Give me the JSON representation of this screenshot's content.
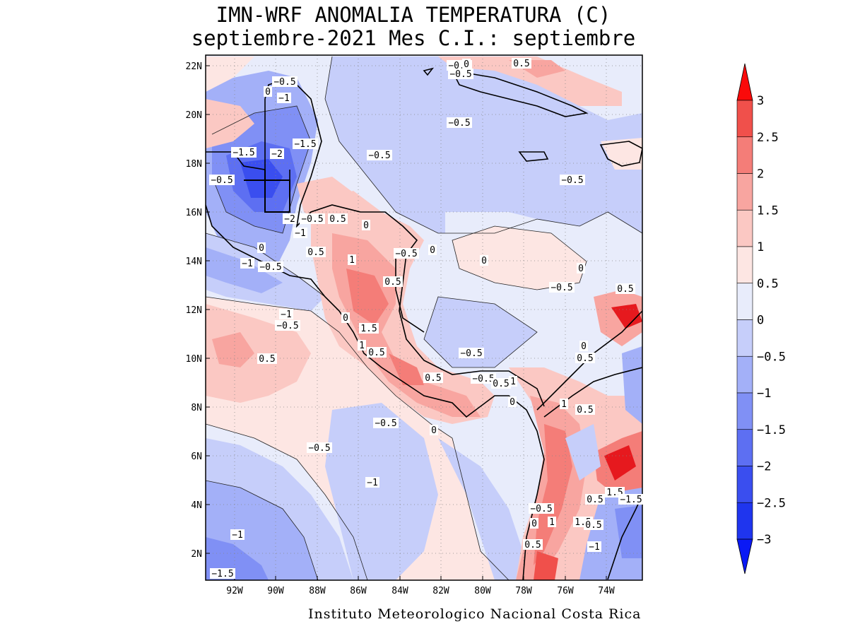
{
  "header": {
    "title": "IMN-WRF  ANOMALIA TEMPERATURA (C)",
    "subtitle": "septiembre-2021 Mes C.I.: septiembre"
  },
  "footer": {
    "credit": "Instituto Meteorologico Nacional Costa Rica"
  },
  "map": {
    "lat_labels": [
      "22N",
      "20N",
      "18N",
      "16N",
      "14N",
      "12N",
      "10N",
      "8N",
      "6N",
      "4N",
      "2N"
    ],
    "lon_labels": [
      "92W",
      "90W",
      "88W",
      "86W",
      "84W",
      "82W",
      "80W",
      "78W",
      "76W",
      "74W"
    ],
    "contour_labels": [
      {
        "text": "-0.5"
      },
      {
        "text": "0"
      },
      {
        "text": "-1"
      },
      {
        "text": "-1.5"
      },
      {
        "text": "-2"
      },
      {
        "text": "-1.5"
      },
      {
        "text": "-0.5"
      },
      {
        "text": "-0.5"
      },
      {
        "text": "0"
      },
      {
        "text": "0.5"
      },
      {
        "text": "-0.5"
      },
      {
        "text": "-0.5"
      },
      {
        "text": "-0.5"
      },
      {
        "text": "-0.5"
      },
      {
        "text": "-2"
      },
      {
        "text": "-0.5"
      },
      {
        "text": "0.5"
      },
      {
        "text": "0"
      },
      {
        "text": "-1"
      },
      {
        "text": "0"
      },
      {
        "text": "0.5"
      },
      {
        "text": "-1"
      },
      {
        "text": "-0.5"
      },
      {
        "text": "1"
      },
      {
        "text": "-0.5"
      },
      {
        "text": "0"
      },
      {
        "text": "0"
      },
      {
        "text": "0"
      },
      {
        "text": "0.5"
      },
      {
        "text": "-0.5"
      },
      {
        "text": "0.5"
      },
      {
        "text": "-1"
      },
      {
        "text": "-0.5"
      },
      {
        "text": "0"
      },
      {
        "text": "1.5"
      },
      {
        "text": "0.5"
      },
      {
        "text": "-0.5"
      },
      {
        "text": "0.5"
      },
      {
        "text": "0.5"
      },
      {
        "text": "1"
      },
      {
        "text": "-0.5"
      },
      {
        "text": "0.5"
      },
      {
        "text": "1"
      },
      {
        "text": "0"
      },
      {
        "text": "1"
      },
      {
        "text": "0.5"
      },
      {
        "text": "0"
      },
      {
        "text": "0.5"
      },
      {
        "text": "-0.5"
      },
      {
        "text": "0"
      },
      {
        "text": "-0.5"
      },
      {
        "text": "-1"
      },
      {
        "text": "1.5"
      },
      {
        "text": "0.5"
      },
      {
        "text": "-1.5"
      },
      {
        "text": "-0.5"
      },
      {
        "text": "0"
      },
      {
        "text": "1"
      },
      {
        "text": "1.5"
      },
      {
        "text": "0.5"
      },
      {
        "text": "-1"
      },
      {
        "text": "0.5"
      },
      {
        "text": "-1"
      },
      {
        "text": "-1.5"
      }
    ]
  },
  "colorbar": {
    "labels": [
      "3",
      "2.5",
      "2",
      "1.5",
      "1",
      "0.5",
      "0",
      "−0.5",
      "−1",
      "−1.5",
      "−2",
      "−2.5",
      "−3"
    ],
    "colors": [
      "#e6191e",
      "#f0504b",
      "#f47d78",
      "#f8a5a0",
      "#fbc8c3",
      "#fde6e3",
      "#e8ecfb",
      "#c6cefa",
      "#a3b0f8",
      "#8090f5",
      "#5d6ff2",
      "#3a4eef",
      "#1f35ee"
    ],
    "over_color": "#fa0a0a",
    "under_color": "#0a19f5"
  }
}
